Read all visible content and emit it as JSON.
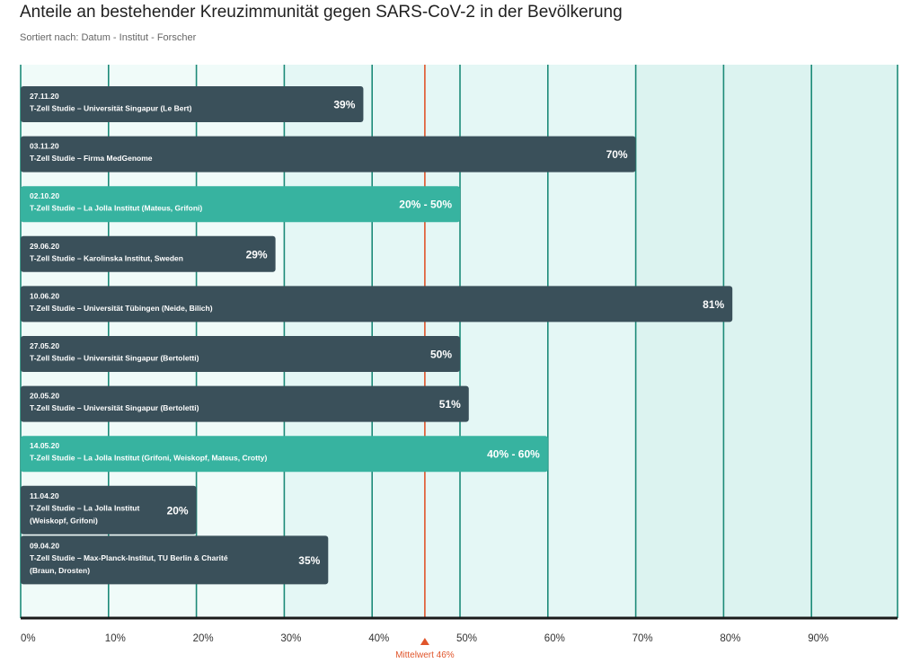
{
  "title": "Anteile an bestehender Kreuzimmunität gegen SARS-CoV-2 in der Bevölkerung",
  "subtitle": "Sortiert nach: Datum - Institut - Forscher",
  "colors": {
    "bar_dark": "#3a505a",
    "bar_range": "#37b3a0",
    "gridline": "#1c8a78",
    "band_light": "#f0fbf9",
    "band_mid": "#e4f7f5",
    "band_dark": "#dcf3f0",
    "axis": "#1a1a1a",
    "mean": "#e0552b"
  },
  "chart_data": {
    "type": "bar",
    "orientation": "horizontal",
    "xlim": [
      0,
      100
    ],
    "x_ticks": [
      "0%",
      "10%",
      "20%",
      "30%",
      "40%",
      "50%",
      "60%",
      "70%",
      "80%",
      "90%"
    ],
    "grid": true,
    "bars": [
      {
        "date": "27.11.20",
        "lines": [
          "T-Zell Studie – Universität Singapur (Le Bert)"
        ],
        "value": 39,
        "display": "39%",
        "kind": "single"
      },
      {
        "date": "03.11.20",
        "lines": [
          "T-Zell Studie – Firma MedGenome"
        ],
        "value": 70,
        "display": "70%",
        "kind": "single"
      },
      {
        "date": "02.10.20",
        "lines": [
          "T-Zell Studie – La Jolla Institut (Mateus, Grifoni)"
        ],
        "value": 50,
        "range": [
          20,
          50
        ],
        "display": "20% - 50%",
        "kind": "range"
      },
      {
        "date": "29.06.20",
        "lines": [
          "T-Zell Studie – Karolinska Institut, Sweden"
        ],
        "value": 29,
        "display": "29%",
        "kind": "single"
      },
      {
        "date": "10.06.20",
        "lines": [
          "T-Zell Studie – Universität Tübingen (Neide, Bilich)"
        ],
        "value": 81,
        "display": "81%",
        "kind": "single"
      },
      {
        "date": "27.05.20",
        "lines": [
          "T-Zell Studie – Universität Singapur (Bertoletti)"
        ],
        "value": 50,
        "display": "50%",
        "kind": "single"
      },
      {
        "date": "20.05.20",
        "lines": [
          "T-Zell Studie – Universität Singapur (Bertoletti)"
        ],
        "value": 51,
        "display": "51%",
        "kind": "single"
      },
      {
        "date": "14.05.20",
        "lines": [
          "T-Zell Studie – La Jolla Institut (Grifoni, Weiskopf, Mateus, Crotty)"
        ],
        "value": 60,
        "range": [
          40,
          60
        ],
        "display": "40% - 60%",
        "kind": "range"
      },
      {
        "date": "11.04.20",
        "lines": [
          "T-Zell Studie – La Jolla Institut",
          "(Weiskopf, Grifoni)"
        ],
        "value": 20,
        "display": "20%",
        "kind": "single"
      },
      {
        "date": "09.04.20",
        "lines": [
          "T-Zell Studie – Max-Planck-Institut, TU Berlin & Charité",
          "(Braun, Drosten)"
        ],
        "value": 35,
        "display": "35%",
        "kind": "single"
      }
    ],
    "mean": {
      "value": 46,
      "label": "Mittelwert 46%"
    }
  }
}
